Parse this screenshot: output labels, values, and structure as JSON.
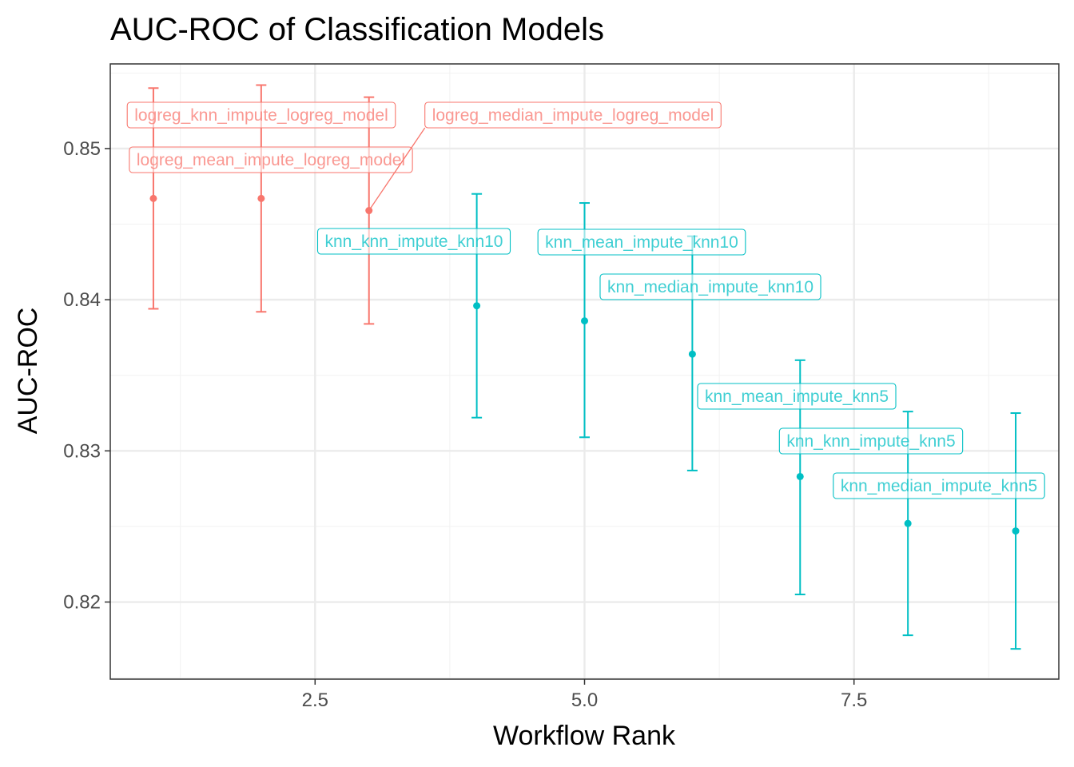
{
  "chart_data": {
    "type": "scatter",
    "title": "AUC-ROC of Classification Models",
    "xlabel": "Workflow Rank",
    "ylabel": "AUC-ROC",
    "xlim": [
      0.6,
      9.4
    ],
    "ylim": [
      0.8149,
      0.8556
    ],
    "x_ticks": [
      2.5,
      5.0,
      7.5
    ],
    "x_tick_labels": [
      "2.5",
      "5.0",
      "7.5"
    ],
    "y_ticks": [
      0.82,
      0.83,
      0.84,
      0.85
    ],
    "y_tick_labels": [
      "0.82",
      "0.83",
      "0.84",
      "0.85"
    ],
    "grid": true,
    "legend": "none",
    "colors": {
      "logreg": "#F8766D",
      "knn": "#00BFC4"
    },
    "points": [
      {
        "rank": 1,
        "mean": 0.8467,
        "lower": 0.8394,
        "upper": 0.854,
        "group": "logreg",
        "label": "logreg_knn_impute_logreg_model"
      },
      {
        "rank": 2,
        "mean": 0.8467,
        "lower": 0.8392,
        "upper": 0.8542,
        "group": "logreg",
        "label": "logreg_mean_impute_logreg_model"
      },
      {
        "rank": 3,
        "mean": 0.8459,
        "lower": 0.8384,
        "upper": 0.8534,
        "group": "logreg",
        "label": "logreg_median_impute_logreg_model"
      },
      {
        "rank": 4,
        "mean": 0.8396,
        "lower": 0.8322,
        "upper": 0.847,
        "group": "knn",
        "label": "knn_knn_impute_knn10"
      },
      {
        "rank": 5,
        "mean": 0.8386,
        "lower": 0.8309,
        "upper": 0.8464,
        "group": "knn",
        "label": "knn_mean_impute_knn10"
      },
      {
        "rank": 6,
        "mean": 0.8364,
        "lower": 0.8287,
        "upper": 0.8442,
        "group": "knn",
        "label": "knn_median_impute_knn10"
      },
      {
        "rank": 7,
        "mean": 0.8283,
        "lower": 0.8205,
        "upper": 0.836,
        "group": "knn",
        "label": "knn_mean_impute_knn5"
      },
      {
        "rank": 8,
        "mean": 0.8252,
        "lower": 0.8178,
        "upper": 0.8326,
        "group": "knn",
        "label": "knn_knn_impute_knn5"
      },
      {
        "rank": 9,
        "mean": 0.8247,
        "lower": 0.8169,
        "upper": 0.8325,
        "group": "knn",
        "label": "knn_median_impute_knn5"
      }
    ]
  }
}
